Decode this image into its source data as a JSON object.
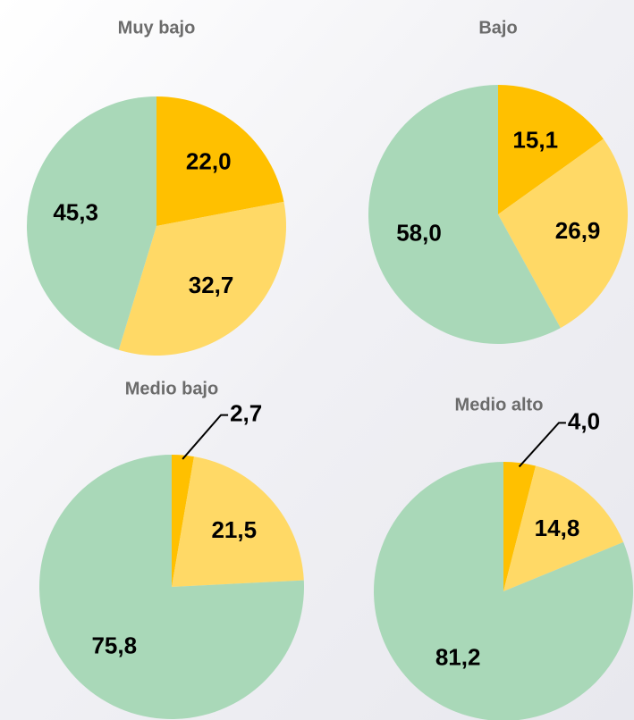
{
  "chart_data": [
    {
      "type": "pie",
      "title": "Muy bajo",
      "values": [
        22.0,
        32.7,
        45.3
      ],
      "value_labels": [
        "22,0",
        "32,7",
        "45,3"
      ],
      "colors": [
        "#FFC000",
        "#FFD966",
        "#A9D8B8"
      ]
    },
    {
      "type": "pie",
      "title": "Bajo",
      "values": [
        15.1,
        26.9,
        58.0
      ],
      "value_labels": [
        "15,1",
        "26,9",
        "58,0"
      ],
      "colors": [
        "#FFC000",
        "#FFD966",
        "#A9D8B8"
      ]
    },
    {
      "type": "pie",
      "title": "Medio bajo",
      "values": [
        2.7,
        21.5,
        75.8
      ],
      "value_labels": [
        "2,7",
        "21,5",
        "75,8"
      ],
      "colors": [
        "#FFC000",
        "#FFD966",
        "#A9D8B8"
      ]
    },
    {
      "type": "pie",
      "title": "Medio alto",
      "values": [
        4.0,
        14.8,
        81.2
      ],
      "value_labels": [
        "4,0",
        "14,8",
        "81,2"
      ],
      "colors": [
        "#FFC000",
        "#FFD966",
        "#A9D8B8"
      ]
    }
  ]
}
